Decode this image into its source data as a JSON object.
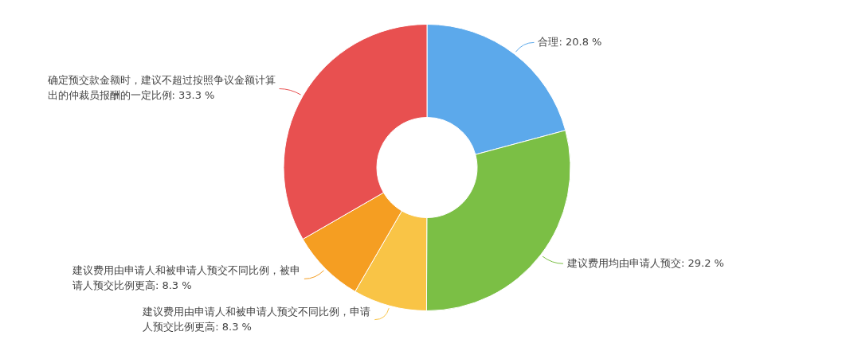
{
  "chart_data": {
    "type": "donut",
    "categories": [
      "合理",
      "建议费用均由申请人预交",
      "建议费用由申请人和被申请人预交不同比例，申请人预交比例更高",
      "建议费用由申请人和被申请人预交不同比例，被申请人预交比例更高",
      "确定预交款金额时，建议不超过按照争议金额计算出的仲裁员报酬的一定比例"
    ],
    "values": [
      20.8,
      29.2,
      8.3,
      8.3,
      33.3
    ],
    "colors": [
      "#5ca9eb",
      "#7bbf45",
      "#f9c446",
      "#f59e22",
      "#e85050"
    ],
    "value_labels": [
      "20.8 %",
      "29.2 %",
      "8.3 %",
      "8.3 %",
      "33.3 %"
    ],
    "legend": false
  }
}
